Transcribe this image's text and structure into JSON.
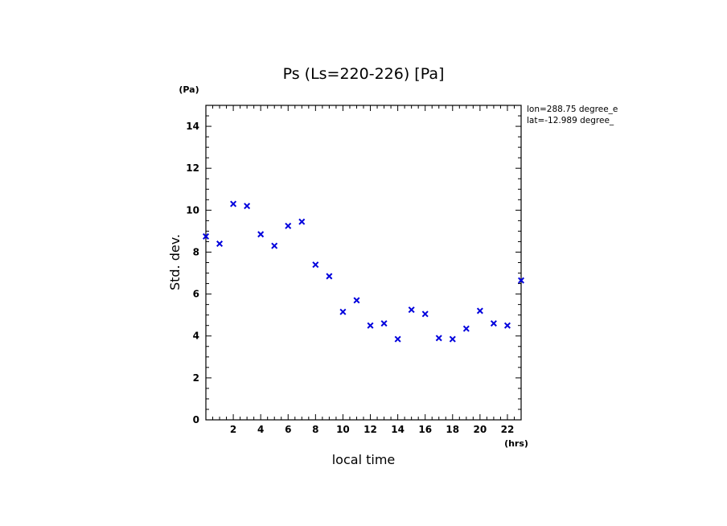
{
  "chart_data": {
    "type": "scatter",
    "title": "Ps (Ls=220-226) [Pa]",
    "xlabel": "local time",
    "ylabel": "Std. dev.",
    "x_unit": "(hrs)",
    "y_unit": "(Pa)",
    "xlim": [
      0,
      23
    ],
    "ylim": [
      0,
      15
    ],
    "x_ticks": [
      2,
      4,
      6,
      8,
      10,
      12,
      14,
      16,
      18,
      20,
      22
    ],
    "y_ticks": [
      0,
      2,
      4,
      6,
      8,
      10,
      12,
      14
    ],
    "marker": "x",
    "color": "#0000dd",
    "grid": false,
    "annotations": [
      "lon=288.75 degree_e",
      "lat=-12.989 degree_"
    ],
    "series": [
      {
        "x": [
          0,
          1,
          2,
          3,
          4,
          5,
          6,
          7,
          8,
          9,
          10,
          11,
          12,
          13,
          14,
          15,
          16,
          17,
          18,
          19,
          20,
          21,
          22,
          23
        ],
        "y": [
          8.75,
          8.4,
          10.3,
          10.2,
          8.85,
          8.3,
          9.25,
          9.45,
          7.4,
          6.85,
          5.15,
          5.7,
          4.5,
          4.6,
          3.85,
          5.25,
          5.05,
          3.9,
          3.85,
          4.35,
          5.2,
          4.6,
          4.5,
          6.65
        ]
      }
    ]
  }
}
